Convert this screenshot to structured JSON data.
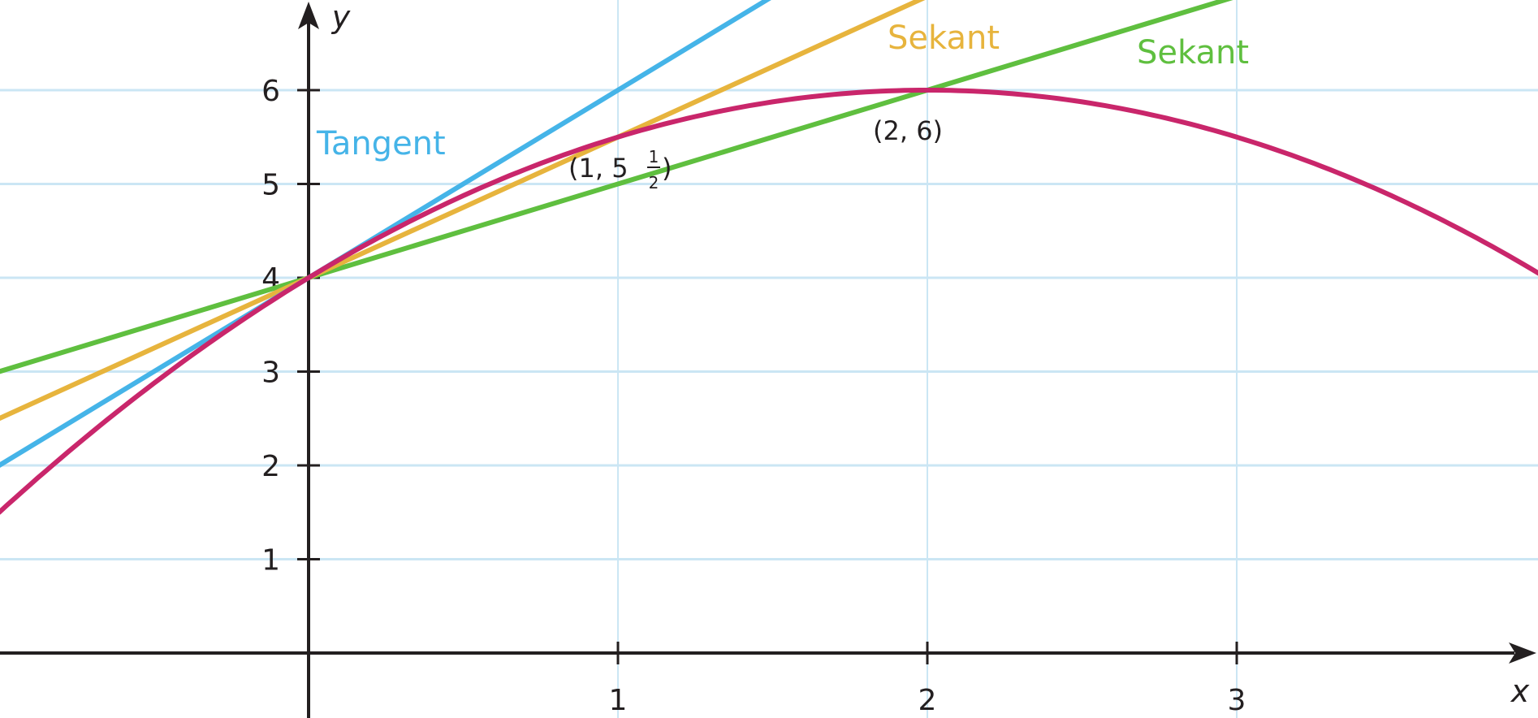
{
  "chart_data": {
    "type": "line",
    "title": "",
    "xlabel": "x",
    "ylabel": "y",
    "xlim": [
      -1,
      4
    ],
    "ylim": [
      0,
      7
    ],
    "grid": true,
    "x_ticks": [
      "1",
      "2",
      "3"
    ],
    "y_ticks": [
      "1",
      "2",
      "3",
      "4",
      "5",
      "6"
    ],
    "colors": {
      "curve": "#c9266b",
      "tangent": "#45b4e8",
      "secant_1": "#e7b43d",
      "secant_2": "#5fbf3f",
      "grid": "#cbe6f4",
      "axis": "#231f20"
    },
    "series": [
      {
        "id": "curve",
        "function": "y = -0.5x^2 + 2x + 4",
        "x": [
          -1,
          -0.5,
          0,
          0.5,
          1,
          1.5,
          2,
          2.5,
          3,
          3.5,
          4
        ],
        "y": [
          1.5,
          2.875,
          4,
          4.875,
          5.5,
          5.875,
          6,
          5.875,
          5.5,
          4.875,
          4
        ]
      },
      {
        "id": "tangent",
        "name": "Tangent",
        "function": "y = 2x + 4",
        "x": [
          -1,
          1.5
        ],
        "y": [
          2,
          7
        ]
      },
      {
        "id": "secant_1",
        "name": "Sekant",
        "function": "y = 1.5x + 4",
        "x": [
          -1,
          2
        ],
        "y": [
          2.5,
          7
        ]
      },
      {
        "id": "secant_2",
        "name": "Sekant",
        "function": "y = x + 4",
        "x": [
          -1,
          3
        ],
        "y": [
          3,
          7
        ]
      }
    ],
    "points": [
      {
        "x": 1,
        "y": 5.5,
        "label_main": "(1, 5",
        "label_num": "1",
        "label_den": "2",
        "label_close": ")"
      },
      {
        "x": 2,
        "y": 6,
        "label": "(2, 6)"
      }
    ]
  }
}
